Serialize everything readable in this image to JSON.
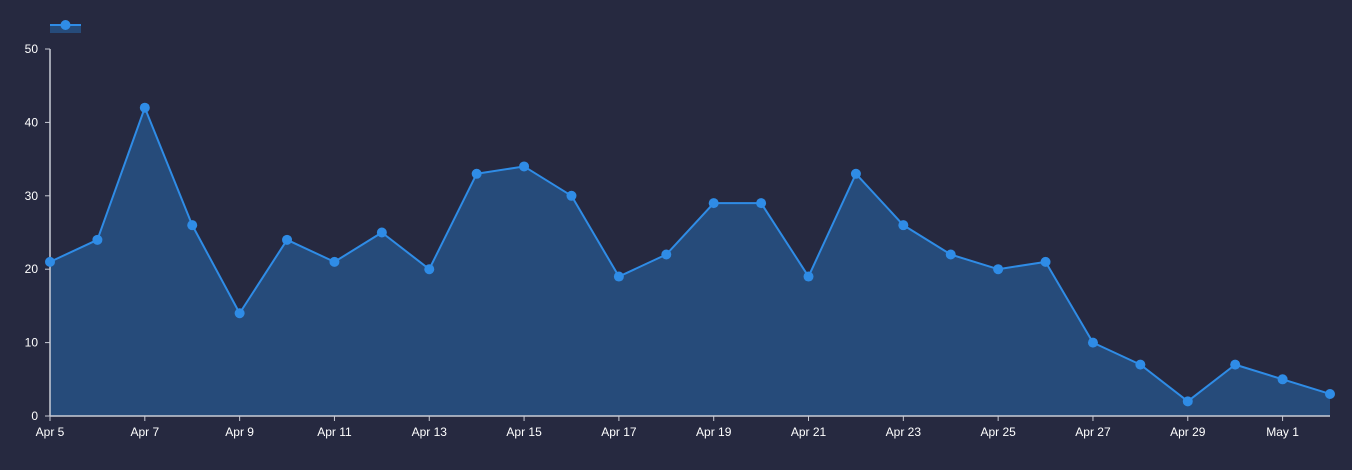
{
  "theme": {
    "background": "#262940",
    "line": "#2f8ce6",
    "area": "#264b7a",
    "axis": "#c9ccd6",
    "text": "#ffffff"
  },
  "legend": {
    "icon": "line-with-dot-legend-icon",
    "label": ""
  },
  "chart_data": {
    "type": "area",
    "title": "",
    "xlabel": "",
    "ylabel": "",
    "ylim": [
      0,
      50
    ],
    "yticks": [
      0,
      10,
      20,
      30,
      40,
      50
    ],
    "grid": false,
    "legend_position": "top-left",
    "x": [
      "Apr 5",
      "Apr 6",
      "Apr 7",
      "Apr 8",
      "Apr 9",
      "Apr 10",
      "Apr 11",
      "Apr 12",
      "Apr 13",
      "Apr 14",
      "Apr 15",
      "Apr 16",
      "Apr 17",
      "Apr 18",
      "Apr 19",
      "Apr 20",
      "Apr 21",
      "Apr 22",
      "Apr 23",
      "Apr 24",
      "Apr 25",
      "Apr 26",
      "Apr 27",
      "Apr 28",
      "Apr 29",
      "Apr 30",
      "May 1",
      "May 2"
    ],
    "xtick_labels": [
      "Apr 5",
      "Apr 7",
      "Apr 9",
      "Apr 11",
      "Apr 13",
      "Apr 15",
      "Apr 17",
      "Apr 19",
      "Apr 21",
      "Apr 23",
      "Apr 25",
      "Apr 27",
      "Apr 29",
      "May 1"
    ],
    "series": [
      {
        "values": [
          21,
          24,
          42,
          26,
          14,
          24,
          21,
          25,
          20,
          33,
          34,
          30,
          19,
          22,
          29,
          29,
          19,
          33,
          26,
          22,
          20,
          21,
          10,
          7,
          2,
          7,
          5,
          3
        ]
      }
    ]
  }
}
